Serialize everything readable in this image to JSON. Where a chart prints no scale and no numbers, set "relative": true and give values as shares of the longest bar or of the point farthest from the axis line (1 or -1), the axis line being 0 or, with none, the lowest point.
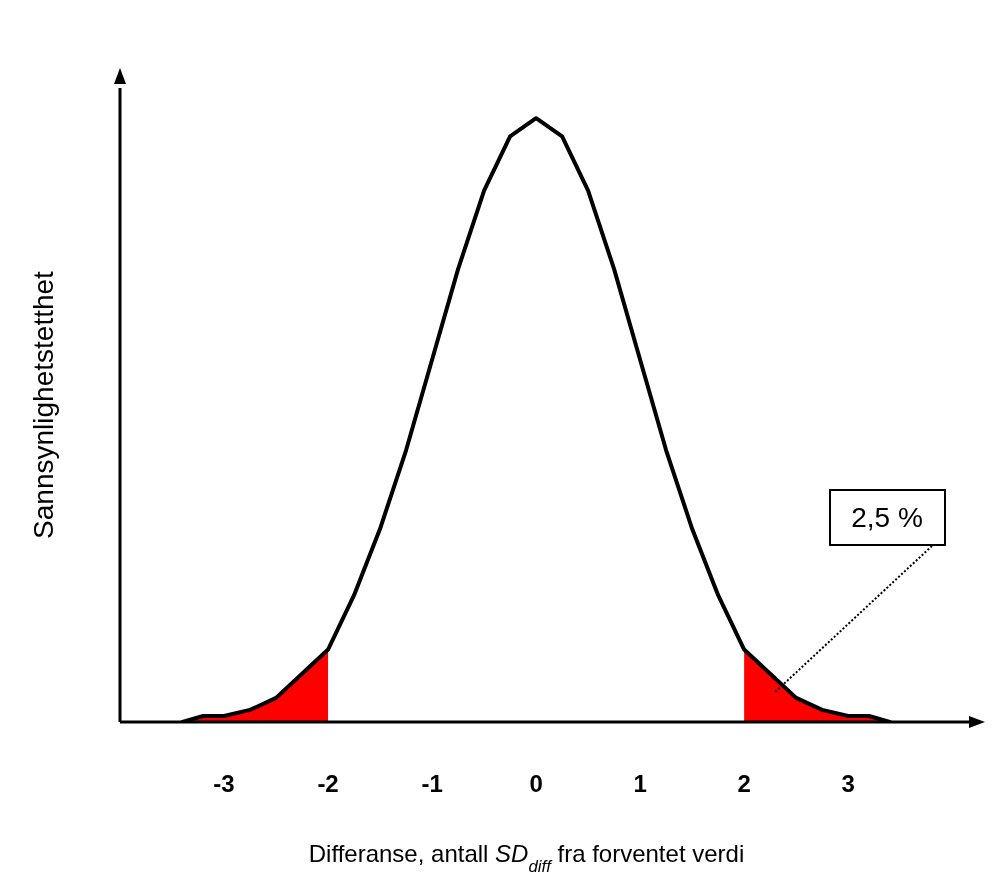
{
  "chart_data": {
    "type": "line",
    "relative": true,
    "xlabel": "Differanse, antall SD$_{diff}$ fra forventet verdi",
    "ylabel": "Sannsynlighetstetthet",
    "xlim": [
      -4,
      4.2
    ],
    "xticks": [
      -3,
      -2,
      -1,
      0,
      1,
      2,
      3
    ],
    "series": [
      {
        "type": "area",
        "color": "#ff0000",
        "x": [
          -3.4,
          -3.2,
          -3,
          -2.75,
          -2.5,
          -2.25,
          -2
        ],
        "values": [
          0.0,
          0.01,
          0.01,
          0.02,
          0.04,
          0.08,
          0.12
        ]
      },
      {
        "type": "area",
        "color": "#ff0000",
        "x": [
          2,
          2.25,
          2.5,
          2.75,
          3,
          3.2,
          3.4
        ],
        "values": [
          0.12,
          0.08,
          0.04,
          0.02,
          0.01,
          0.01,
          0.0
        ]
      },
      {
        "color": "#000000",
        "x": [
          -3.4,
          -3.2,
          -3,
          -2.75,
          -2.5,
          -2.25,
          -2,
          -1.75,
          -1.5,
          -1.25,
          -1,
          -0.75,
          -0.5,
          -0.25,
          0,
          0.25,
          0.5,
          0.75,
          1,
          1.25,
          1.5,
          1.75,
          2,
          2.25,
          2.5,
          2.75,
          3,
          3.2,
          3.4
        ],
        "values": [
          0.0,
          0.01,
          0.01,
          0.02,
          0.04,
          0.08,
          0.12,
          0.21,
          0.32,
          0.45,
          0.6,
          0.75,
          0.88,
          0.97,
          1.0,
          0.97,
          0.88,
          0.75,
          0.6,
          0.45,
          0.32,
          0.21,
          0.12,
          0.08,
          0.04,
          0.02,
          0.01,
          0.01,
          0.0
        ]
      }
    ],
    "annotations": [
      "2,5 %"
    ]
  }
}
